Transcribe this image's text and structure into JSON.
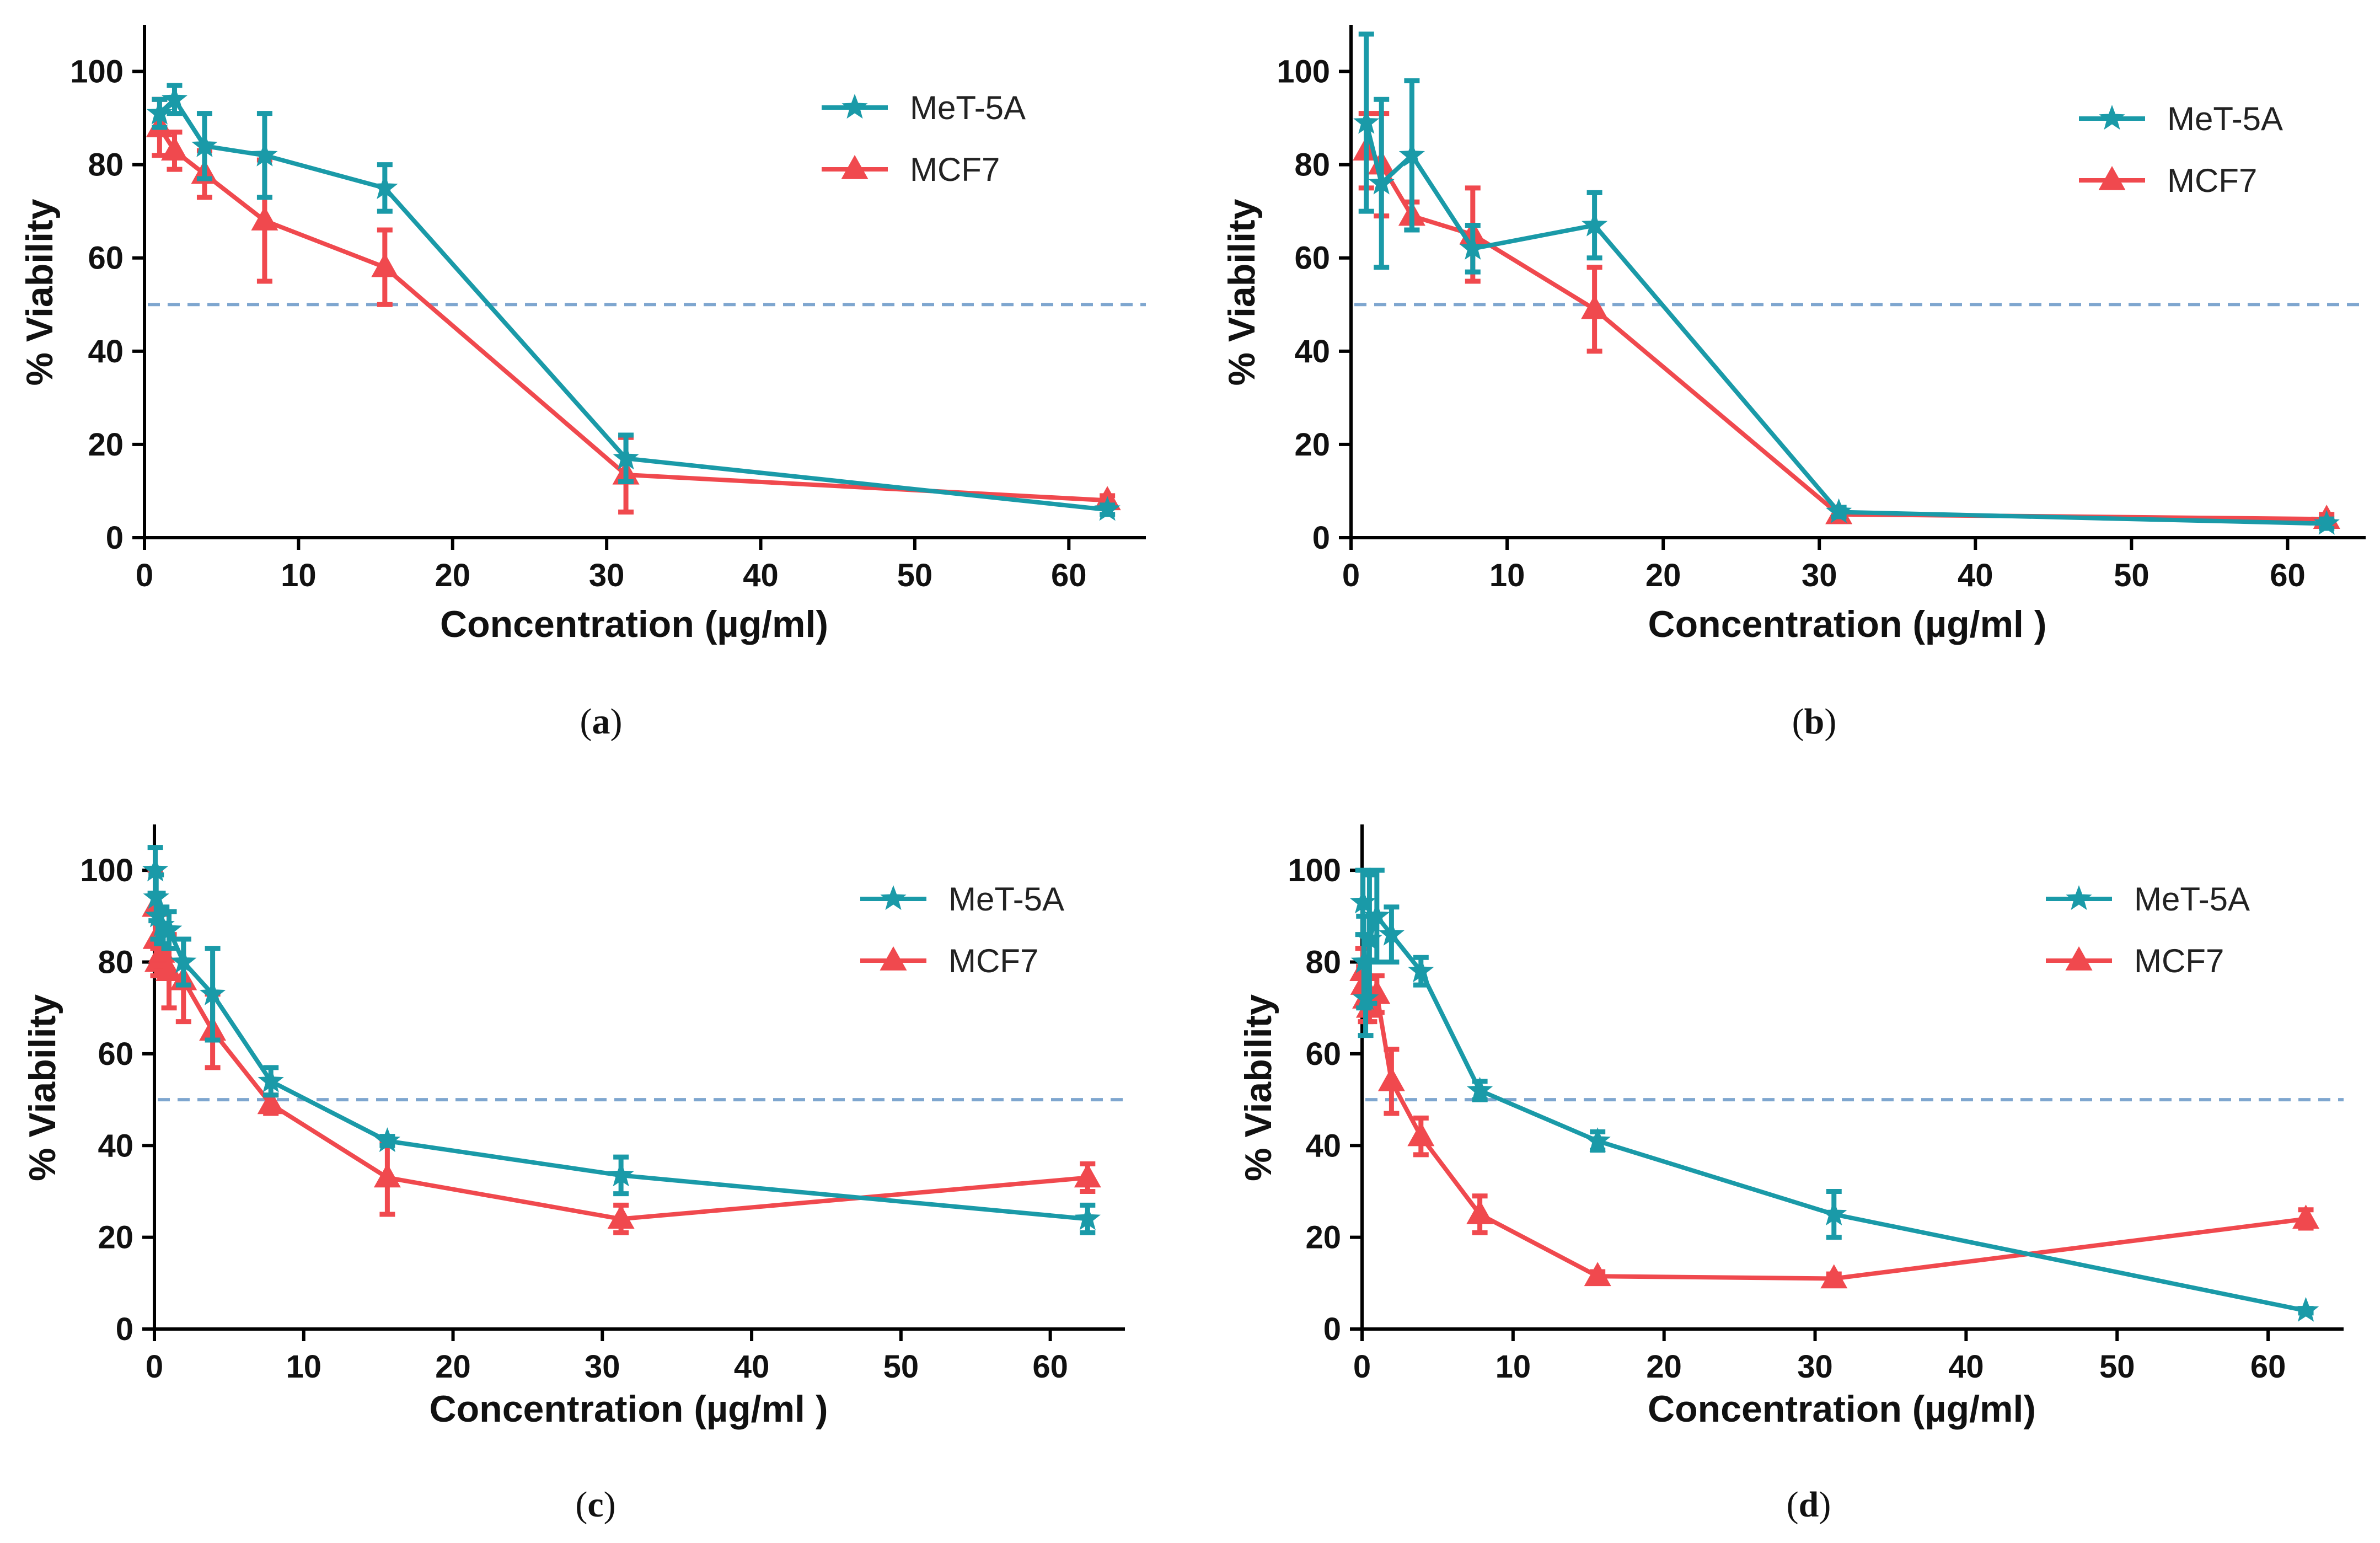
{
  "colors": {
    "met5a": "#1a9aa8",
    "mcf7": "#f0494e",
    "ref": "#7ea6cf",
    "axis": "#000000"
  },
  "chart_data": [
    {
      "id": "a",
      "type": "line",
      "panel_label": "a",
      "xlabel": "Concentration (µg/ml)",
      "ylabel": "% Viability",
      "xlim": [
        0,
        65
      ],
      "ylim": [
        0,
        110
      ],
      "xticks": [
        0,
        10,
        20,
        30,
        40,
        50,
        60
      ],
      "yticks": [
        0,
        20,
        40,
        60,
        80,
        100
      ],
      "reference_y": 50,
      "legend": [
        "MeT-5A",
        "MCF7"
      ],
      "series": [
        {
          "name": "MeT-5A",
          "marker": "star",
          "x": [
            0.98,
            1.95,
            3.9,
            7.8,
            15.6,
            31.25,
            62.5
          ],
          "y": [
            91,
            94,
            84,
            82,
            75,
            17,
            6
          ],
          "err": [
            3,
            3,
            7,
            9,
            5,
            5,
            1
          ]
        },
        {
          "name": "MCF7",
          "marker": "triangle",
          "x": [
            0.98,
            1.95,
            3.9,
            7.8,
            15.6,
            31.25,
            62.5
          ],
          "y": [
            88,
            83,
            78,
            68,
            58,
            13.5,
            8
          ],
          "err": [
            6,
            4,
            5,
            13,
            8,
            8,
            1
          ]
        }
      ]
    },
    {
      "id": "b",
      "type": "line",
      "panel_label": "b",
      "xlabel": "Concentration (µg/ml )",
      "ylabel": "% Viability",
      "xlim": [
        0,
        65
      ],
      "ylim": [
        0,
        110
      ],
      "xticks": [
        0,
        10,
        20,
        30,
        40,
        50,
        60
      ],
      "yticks": [
        0,
        20,
        40,
        60,
        80,
        100
      ],
      "reference_y": 50,
      "legend": [
        "MeT-5A",
        "MCF7"
      ],
      "series": [
        {
          "name": "MeT-5A",
          "marker": "star",
          "x": [
            0.98,
            1.95,
            3.9,
            7.8,
            15.6,
            31.25,
            62.5
          ],
          "y": [
            89,
            76,
            82,
            62,
            67,
            5.5,
            3
          ],
          "err": [
            19,
            18,
            16,
            5,
            7,
            1,
            1
          ]
        },
        {
          "name": "MCF7",
          "marker": "triangle",
          "x": [
            0.98,
            1.95,
            3.9,
            7.8,
            15.6,
            31.25,
            62.5
          ],
          "y": [
            83,
            80,
            69,
            65,
            49,
            5,
            4
          ],
          "err": [
            8,
            11,
            3,
            10,
            9,
            1,
            1
          ]
        }
      ]
    },
    {
      "id": "c",
      "type": "line",
      "panel_label": "c",
      "xlabel": "Concentration (µg/ml )",
      "ylabel": "% Viability",
      "xlim": [
        0,
        65
      ],
      "ylim": [
        0,
        110
      ],
      "xticks": [
        0,
        10,
        20,
        30,
        40,
        50,
        60
      ],
      "yticks": [
        0,
        20,
        40,
        60,
        80,
        100
      ],
      "reference_y": 50,
      "legend": [
        "MeT-5A",
        "MCF7"
      ],
      "series": [
        {
          "name": "MeT-5A",
          "marker": "star",
          "x": [
            0.06,
            0.12,
            0.24,
            0.49,
            0.98,
            1.95,
            3.9,
            7.8,
            15.6,
            31.25,
            62.5
          ],
          "y": [
            100,
            94,
            90,
            88,
            87,
            80,
            73,
            54,
            41,
            33.5,
            24
          ],
          "err": [
            5,
            5,
            5,
            4,
            4,
            5,
            10,
            3,
            1,
            4,
            3
          ]
        },
        {
          "name": "MCF7",
          "marker": "triangle",
          "x": [
            0.06,
            0.12,
            0.24,
            0.49,
            0.98,
            1.95,
            3.9,
            7.8,
            15.6,
            31.25,
            62.5
          ],
          "y": [
            92,
            85,
            80,
            82,
            78,
            76,
            65,
            49,
            33,
            24,
            33
          ],
          "err": [
            8,
            6,
            3,
            4,
            8,
            9,
            8,
            2,
            8,
            3,
            3
          ]
        }
      ]
    },
    {
      "id": "d",
      "type": "line",
      "panel_label": "d",
      "xlabel": "Concentration (µg/ml)",
      "ylabel": "% Viability",
      "xlim": [
        0,
        65
      ],
      "ylim": [
        0,
        110
      ],
      "xticks": [
        0,
        10,
        20,
        30,
        40,
        50,
        60
      ],
      "yticks": [
        0,
        20,
        40,
        60,
        80,
        100
      ],
      "reference_y": 50,
      "legend": [
        "MeT-5A",
        "MCF7"
      ],
      "series": [
        {
          "name": "MeT-5A",
          "marker": "star",
          "x": [
            0.06,
            0.12,
            0.24,
            0.49,
            0.98,
            1.95,
            3.9,
            7.8,
            15.6,
            31.25,
            62.5
          ],
          "y": [
            93,
            80,
            72,
            85,
            90,
            86,
            78,
            52,
            41,
            25,
            4
          ],
          "err": [
            7,
            10,
            8,
            14,
            10,
            6,
            3,
            2,
            2,
            5,
            0.5
          ]
        },
        {
          "name": "MCF7",
          "marker": "triangle",
          "x": [
            0.06,
            0.12,
            0.24,
            0.49,
            0.98,
            1.95,
            3.9,
            7.8,
            15.6,
            31.25,
            62.5
          ],
          "y": [
            78,
            75,
            72,
            70,
            73,
            54,
            42,
            25,
            11.5,
            11,
            24
          ],
          "err": [
            5,
            4,
            5,
            3,
            4,
            7,
            4,
            4,
            1,
            1,
            2
          ]
        }
      ]
    }
  ]
}
